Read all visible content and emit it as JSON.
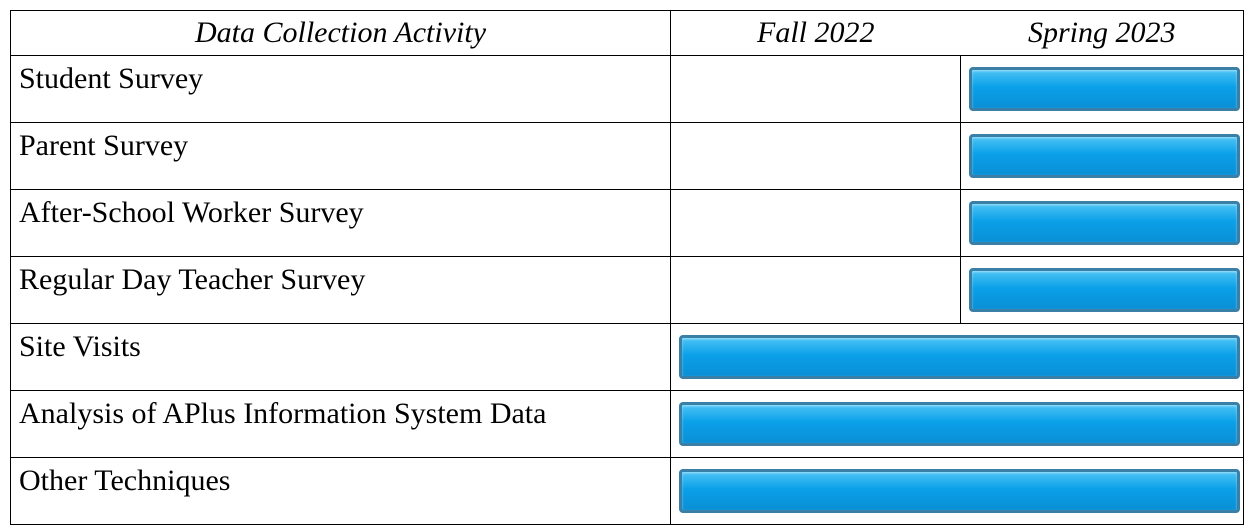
{
  "table": {
    "header": [
      "Data Collection Activity",
      "Fall 2022",
      "Spring 2023"
    ],
    "rows": [
      {
        "label": "Student Survey",
        "fall": false,
        "spring": true
      },
      {
        "label": "Parent Survey",
        "fall": false,
        "spring": true
      },
      {
        "label": "After-School Worker Survey",
        "fall": false,
        "spring": true
      },
      {
        "label": "Regular Day Teacher Survey",
        "fall": false,
        "spring": true
      },
      {
        "label": "Site Visits",
        "fall": true,
        "spring": true
      },
      {
        "label": "Analysis of APlus Information System Data",
        "fall": true,
        "spring": true
      },
      {
        "label": "Other Techniques",
        "fall": true,
        "spring": true
      }
    ]
  }
}
